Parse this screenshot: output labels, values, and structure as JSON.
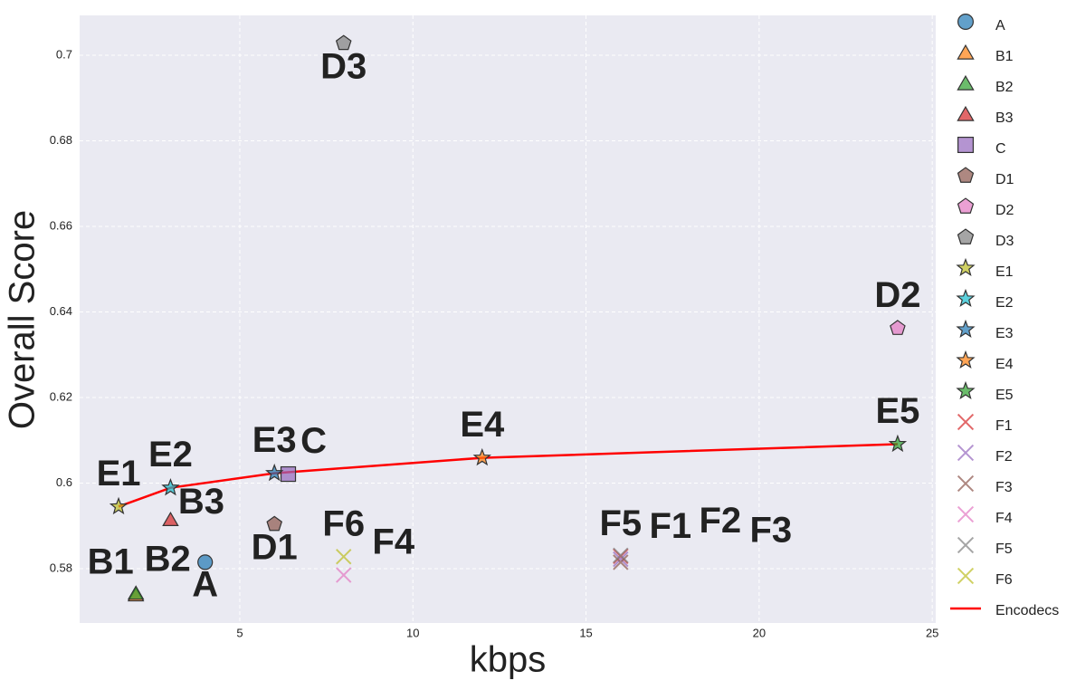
{
  "chart_data": {
    "type": "scatter",
    "xlabel": "kbps",
    "ylabel": "Overall Score",
    "xlim": [
      0.375,
      25.1
    ],
    "ylim": [
      0.5673,
      0.7093
    ],
    "xticks": [
      5,
      10,
      15,
      20,
      25
    ],
    "yticks": [
      0.58,
      0.6,
      0.62,
      0.64,
      0.66,
      0.68,
      0.7
    ],
    "grid": true,
    "legend": "outside right",
    "series": [
      {
        "name": "A",
        "color": "#1f77b4",
        "marker": "circle",
        "x": [
          4
        ],
        "values": [
          0.5815
        ]
      },
      {
        "name": "B1",
        "color": "#ff7f0e",
        "marker": "triangle",
        "x": [
          2
        ],
        "values": [
          0.5739
        ]
      },
      {
        "name": "B2",
        "color": "#2ca02c",
        "marker": "triangle",
        "x": [
          2
        ],
        "values": [
          0.5743
        ]
      },
      {
        "name": "B3",
        "color": "#d62728",
        "marker": "triangle",
        "x": [
          3
        ],
        "values": [
          0.5915
        ]
      },
      {
        "name": "C",
        "color": "#9467bd",
        "marker": "square",
        "x": [
          6.4
        ],
        "values": [
          0.6021
        ]
      },
      {
        "name": "D1",
        "color": "#8c564b",
        "marker": "pentagon",
        "x": [
          6
        ],
        "values": [
          0.5904
        ]
      },
      {
        "name": "D2",
        "color": "#e377c2",
        "marker": "pentagon",
        "x": [
          24
        ],
        "values": [
          0.6362
        ]
      },
      {
        "name": "D3",
        "color": "#7f7f7f",
        "marker": "pentagon",
        "x": [
          8
        ],
        "values": [
          0.7028
        ]
      },
      {
        "name": "E1",
        "color": "#bcbd22",
        "marker": "star",
        "x": [
          1.5
        ],
        "values": [
          0.5945
        ]
      },
      {
        "name": "E2",
        "color": "#17becf",
        "marker": "star",
        "x": [
          3
        ],
        "values": [
          0.5989
        ]
      },
      {
        "name": "E3",
        "color": "#1f77b4",
        "marker": "star",
        "x": [
          6
        ],
        "values": [
          0.6023
        ]
      },
      {
        "name": "E4",
        "color": "#ff7f0e",
        "marker": "star",
        "x": [
          12
        ],
        "values": [
          0.6059
        ]
      },
      {
        "name": "E5",
        "color": "#2ca02c",
        "marker": "star",
        "x": [
          24
        ],
        "values": [
          0.6091
        ]
      },
      {
        "name": "F1",
        "color": "#d62728",
        "marker": "x",
        "x": [
          16
        ],
        "values": [
          0.5829
        ]
      },
      {
        "name": "F2",
        "color": "#9467bd",
        "marker": "x",
        "x": [
          16
        ],
        "values": [
          0.5822
        ]
      },
      {
        "name": "F3",
        "color": "#8c564b",
        "marker": "x",
        "x": [
          16
        ],
        "values": [
          0.5815
        ]
      },
      {
        "name": "F4",
        "color": "#e377c2",
        "marker": "x",
        "x": [
          8
        ],
        "values": [
          0.5785
        ]
      },
      {
        "name": "F5",
        "color": "#7f7f7f",
        "marker": "x",
        "x": [
          16
        ],
        "values": [
          0.5831
        ]
      },
      {
        "name": "F6",
        "color": "#bcbd22",
        "marker": "x",
        "x": [
          8
        ],
        "values": [
          0.5828
        ]
      },
      {
        "name": "Encodecs",
        "color": "#ff0000",
        "marker": "line",
        "x": [
          1.5,
          3,
          6,
          12,
          24
        ],
        "values": [
          0.5945,
          0.5989,
          0.6023,
          0.6059,
          0.6091
        ]
      }
    ]
  }
}
